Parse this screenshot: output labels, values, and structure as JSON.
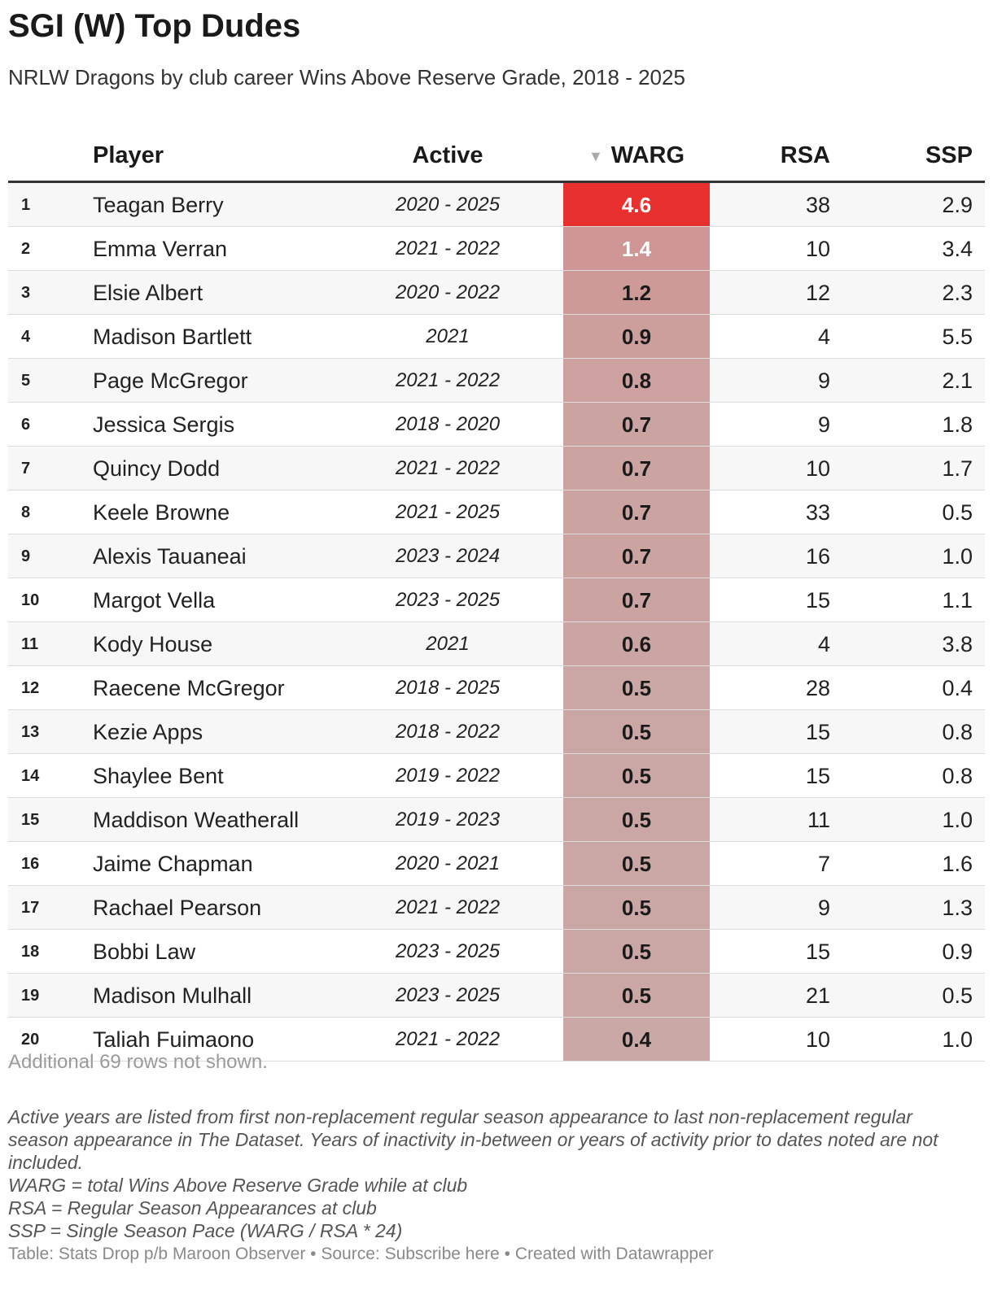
{
  "title": "SGI (W) Top Dudes",
  "subtitle": "NRLW Dragons by club career Wins Above Reserve Grade, 2018 - 2025",
  "colors": {
    "warg_max": "#e8302e",
    "warg_base": "#caa8a6"
  },
  "chart_data": {
    "type": "table",
    "sorted_by": "WARG",
    "sort_indicator": "▼",
    "columns": [
      "Player",
      "Active",
      "WARG",
      "RSA",
      "SSP"
    ],
    "rows": [
      {
        "rank": "1",
        "player": "Teagan Berry",
        "active": "2020 - 2025",
        "warg": "4.6",
        "rsa": "38",
        "ssp": "2.9"
      },
      {
        "rank": "2",
        "player": "Emma Verran",
        "active": "2021 - 2022",
        "warg": "1.4",
        "rsa": "10",
        "ssp": "3.4"
      },
      {
        "rank": "3",
        "player": "Elsie Albert",
        "active": "2020 - 2022",
        "warg": "1.2",
        "rsa": "12",
        "ssp": "2.3"
      },
      {
        "rank": "4",
        "player": "Madison Bartlett",
        "active": "2021",
        "warg": "0.9",
        "rsa": "4",
        "ssp": "5.5"
      },
      {
        "rank": "5",
        "player": "Page McGregor",
        "active": "2021 - 2022",
        "warg": "0.8",
        "rsa": "9",
        "ssp": "2.1"
      },
      {
        "rank": "6",
        "player": "Jessica Sergis",
        "active": "2018 - 2020",
        "warg": "0.7",
        "rsa": "9",
        "ssp": "1.8"
      },
      {
        "rank": "7",
        "player": "Quincy Dodd",
        "active": "2021 - 2022",
        "warg": "0.7",
        "rsa": "10",
        "ssp": "1.7"
      },
      {
        "rank": "8",
        "player": "Keele Browne",
        "active": "2021 - 2025",
        "warg": "0.7",
        "rsa": "33",
        "ssp": "0.5"
      },
      {
        "rank": "9",
        "player": "Alexis Tauaneai",
        "active": "2023 - 2024",
        "warg": "0.7",
        "rsa": "16",
        "ssp": "1.0"
      },
      {
        "rank": "10",
        "player": "Margot Vella",
        "active": "2023 - 2025",
        "warg": "0.7",
        "rsa": "15",
        "ssp": "1.1"
      },
      {
        "rank": "11",
        "player": "Kody House",
        "active": "2021",
        "warg": "0.6",
        "rsa": "4",
        "ssp": "3.8"
      },
      {
        "rank": "12",
        "player": "Raecene McGregor",
        "active": "2018 - 2025",
        "warg": "0.5",
        "rsa": "28",
        "ssp": "0.4"
      },
      {
        "rank": "13",
        "player": "Kezie Apps",
        "active": "2018 - 2022",
        "warg": "0.5",
        "rsa": "15",
        "ssp": "0.8"
      },
      {
        "rank": "14",
        "player": "Shaylee Bent",
        "active": "2019 - 2022",
        "warg": "0.5",
        "rsa": "15",
        "ssp": "0.8"
      },
      {
        "rank": "15",
        "player": "Maddison Weatherall",
        "active": "2019 - 2023",
        "warg": "0.5",
        "rsa": "11",
        "ssp": "1.0"
      },
      {
        "rank": "16",
        "player": "Jaime Chapman",
        "active": "2020 - 2021",
        "warg": "0.5",
        "rsa": "7",
        "ssp": "1.6"
      },
      {
        "rank": "17",
        "player": "Rachael Pearson",
        "active": "2021 - 2022",
        "warg": "0.5",
        "rsa": "9",
        "ssp": "1.3"
      },
      {
        "rank": "18",
        "player": "Bobbi Law",
        "active": "2023 - 2025",
        "warg": "0.5",
        "rsa": "15",
        "ssp": "0.9"
      },
      {
        "rank": "19",
        "player": "Madison Mulhall",
        "active": "2023 - 2025",
        "warg": "0.5",
        "rsa": "21",
        "ssp": "0.5"
      },
      {
        "rank": "20",
        "player": "Taliah Fuimaono",
        "active": "2021 - 2022",
        "warg": "0.4",
        "rsa": "10",
        "ssp": "1.0"
      }
    ]
  },
  "more_rows_text": "Additional 69 rows not shown.",
  "notes": [
    "Active years are listed from first non-replacement regular season appearance to last non-replacement regular season appearance in The Dataset. Years of inactivity in-between or years of activity prior to dates noted are not included.",
    "WARG = total Wins Above Reserve Grade while at club",
    "RSA = Regular Season Appearances at club",
    "SSP = Single Season Pace (WARG / RSA * 24)"
  ],
  "footer": "Table: Stats Drop p/b Maroon Observer • Source: Subscribe here • Created with Datawrapper"
}
